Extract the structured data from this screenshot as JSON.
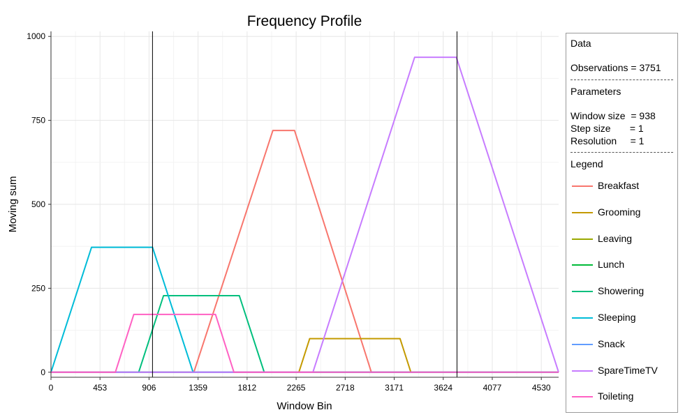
{
  "chart_data": {
    "type": "line",
    "title": "Frequency Profile",
    "xlabel": "Window Bin",
    "ylabel": "Moving sum",
    "xlim": [
      0,
      4690
    ],
    "ylim": [
      -15,
      1015
    ],
    "xticks": [
      "0",
      "453",
      "906",
      "1359",
      "1812",
      "2265",
      "2718",
      "3171",
      "3624",
      "4077",
      "4530"
    ],
    "xtick_values": [
      0,
      453,
      906,
      1359,
      1812,
      2265,
      2718,
      3171,
      3624,
      4077,
      4530
    ],
    "yticks": [
      "0",
      "250",
      "500",
      "750",
      "1000"
    ],
    "ytick_values": [
      0,
      250,
      500,
      750,
      1000
    ],
    "grid": true,
    "vlines": [
      938,
      3751
    ],
    "series": [
      {
        "name": "Breakfast",
        "color": "#F8766D",
        "x": [
          0,
          1320,
          2050,
          2250,
          2960,
          4690
        ],
        "y": [
          0,
          0,
          720,
          720,
          0,
          0
        ]
      },
      {
        "name": "Grooming",
        "color": "#C49A00",
        "x": [
          0,
          2290,
          2390,
          3225,
          3325,
          4690
        ],
        "y": [
          0,
          0,
          100,
          100,
          0,
          0
        ]
      },
      {
        "name": "Leaving",
        "color": "#99A800",
        "x": [
          0,
          4690
        ],
        "y": [
          0,
          0
        ]
      },
      {
        "name": "Lunch",
        "color": "#00BA38",
        "x": [
          0,
          4690
        ],
        "y": [
          0,
          0
        ]
      },
      {
        "name": "Showering",
        "color": "#00BF7D",
        "x": [
          0,
          810,
          1040,
          1740,
          1970,
          4690
        ],
        "y": [
          0,
          0,
          228,
          228,
          0,
          0
        ]
      },
      {
        "name": "Sleeping",
        "color": "#00BCD8",
        "x": [
          0,
          375,
          938,
          1313,
          4690
        ],
        "y": [
          0,
          372,
          372,
          0,
          0
        ]
      },
      {
        "name": "Snack",
        "color": "#619CFF",
        "x": [
          0,
          4690
        ],
        "y": [
          0,
          0
        ]
      },
      {
        "name": "SpareTimeTV",
        "color": "#C77CFF",
        "x": [
          0,
          2420,
          3360,
          3745,
          4690
        ],
        "y": [
          0,
          0,
          938,
          938,
          0
        ]
      },
      {
        "name": "Toileting",
        "color": "#FF61C3",
        "x": [
          0,
          595,
          765,
          1520,
          1690,
          4690
        ],
        "y": [
          0,
          0,
          172,
          172,
          0,
          0
        ]
      }
    ]
  },
  "side_panel": {
    "data_heading": "Data",
    "observations": "Observations = 3751",
    "parameters_heading": "Parameters",
    "window_size": "Window size  = 938",
    "step_size": "Step size       = 1",
    "resolution": "Resolution     = 1",
    "legend_heading": "Legend"
  }
}
